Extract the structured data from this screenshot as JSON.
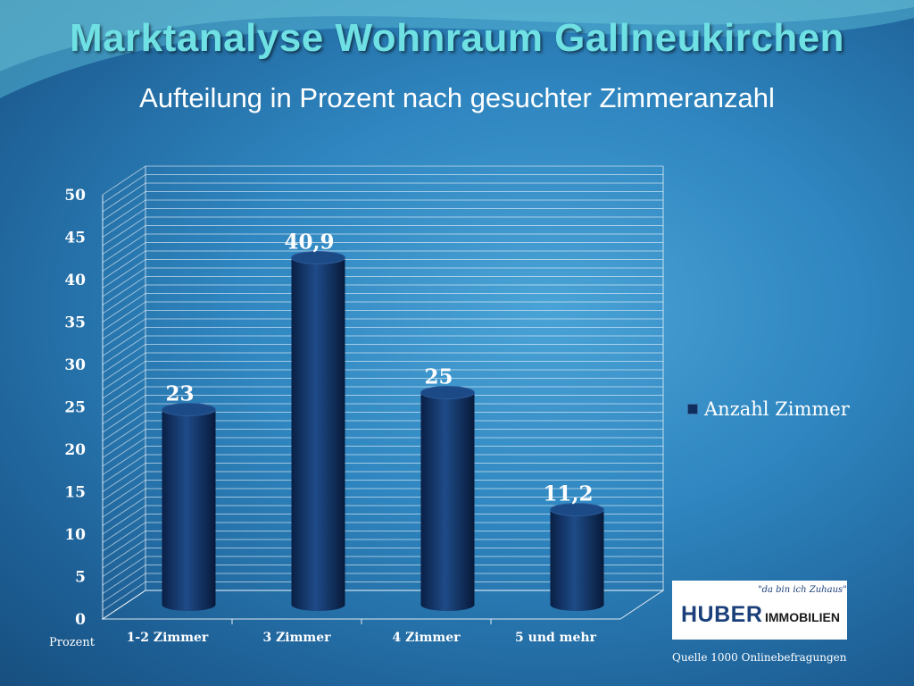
{
  "header": {
    "title": "Marktanalyse Wohnraum Gallneukirchen",
    "subtitle": "Aufteilung in Prozent nach gesuchter Zimmeranzahl"
  },
  "chart_data": {
    "type": "bar",
    "categories": [
      "1-2 Zimmer",
      "3 Zimmer",
      "4 Zimmer",
      "5 und mehr"
    ],
    "series": [
      {
        "name": "Anzahl Zimmer",
        "values": [
          23,
          40.9,
          25,
          11.2
        ],
        "labels": [
          "23",
          "40,9",
          "25",
          "11,2"
        ]
      }
    ],
    "ylim": [
      0,
      50
    ],
    "yticks": [
      0,
      5,
      10,
      15,
      20,
      25,
      30,
      35,
      40,
      45,
      50
    ],
    "ylabel": "Prozent",
    "xlabel": "",
    "grid": true,
    "legend_position": "right",
    "bar_color": "#0f2e5e"
  },
  "legend": {
    "label": "Anzahl Zimmer"
  },
  "logo": {
    "slogan": "\"da bin ich Zuhaus\"",
    "brand": "HUBER",
    "suffix": "IMMOBILIEN"
  },
  "footer": {
    "source": "Quelle 1000 Onlinebefragungen"
  }
}
